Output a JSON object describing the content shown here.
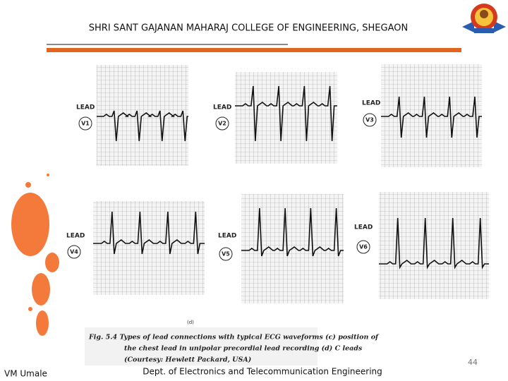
{
  "header": {
    "title": "SHRI SANT GAJANAN MAHARAJ COLLEGE OF ENGINEERING, SHEGAON"
  },
  "leads": [
    {
      "label": "LEAD",
      "name": "V1"
    },
    {
      "label": "LEAD",
      "name": "V2"
    },
    {
      "label": "LEAD",
      "name": "V3"
    },
    {
      "label": "LEAD",
      "name": "V4"
    },
    {
      "label": "LEAD",
      "name": "V5"
    },
    {
      "label": "LEAD",
      "name": "V6"
    }
  ],
  "figure": {
    "panel_label": "(d)",
    "caption": [
      "Fig. 5.4  Types of lead connections with typical ECG waveforms (c) position of",
      "the chest lead in unipolar precordial lead recording (d) C leads",
      "(Courtesy: Hewlett Packard, USA)"
    ]
  },
  "footer": {
    "author": "VM Umale",
    "department": "Dept. of Electronics and Telecommunication Engineering",
    "page": "44"
  }
}
